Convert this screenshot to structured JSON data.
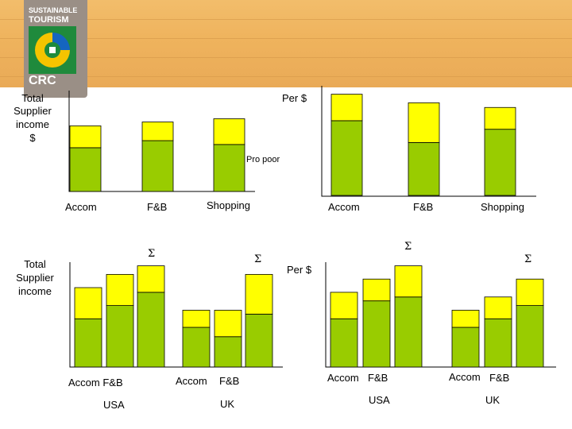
{
  "colors": {
    "base": "#99cc00",
    "top": "#ffff00",
    "banner": "#efb35d",
    "logo_bg": "#9a8f86"
  },
  "logo": {
    "line1": "SUSTAINABLE",
    "line2": "TOURISM",
    "line3": "CRC"
  },
  "annotations": {
    "tl_ylabel_1": "Total",
    "tl_ylabel_2": "Supplier",
    "tl_ylabel_3": "income",
    "tl_ylabel_4": "$",
    "tl_per": "Per $",
    "tl_pro_poor": "Pro poor",
    "bl_ylabel_1": "Total",
    "bl_ylabel_2": "Supplier",
    "bl_ylabel_3": "income",
    "br_per": "Per $",
    "sigma": "Σ",
    "bl_xlab_1": "Accom F&B",
    "bl_xlab_2": "Accom",
    "bl_xlab_3": "F&B",
    "bl_group_1": "USA",
    "bl_group_2": "UK",
    "br_xlab_1": "Accom",
    "br_xlab_2": "F&B",
    "br_xlab_3": "Accom",
    "br_xlab_4": "F&B",
    "br_group_1": "USA",
    "br_group_2": "UK"
  },
  "chart_data": [
    {
      "type": "bar",
      "stacked": true,
      "categories": [
        "Accom",
        "F&B",
        "Shopping"
      ],
      "series": [
        {
          "values": [
            68,
            79,
            73
          ]
        },
        {
          "values": [
            34,
            29,
            40
          ]
        }
      ],
      "ylim": [
        0,
        140
      ]
    },
    {
      "type": "bar",
      "stacked": true,
      "categories": [
        "Accom",
        "F&B",
        "Shopping"
      ],
      "series": [
        {
          "values": [
            96,
            68,
            85
          ]
        },
        {
          "values": [
            34,
            51,
            28
          ]
        }
      ],
      "ylim": [
        0,
        140
      ]
    },
    {
      "type": "bar",
      "stacked": true,
      "groups": [
        "USA",
        "UK"
      ],
      "categories": [
        "Accom",
        "F&B",
        "Σ",
        "Accom",
        "F&B",
        "Σ"
      ],
      "series": [
        {
          "values": [
            62,
            79,
            96,
            51,
            39,
            68
          ]
        },
        {
          "values": [
            40,
            40,
            34,
            22,
            34,
            51
          ]
        }
      ],
      "ylim": [
        0,
        140
      ]
    },
    {
      "type": "bar",
      "stacked": true,
      "groups": [
        "USA",
        "UK"
      ],
      "categories": [
        "Accom",
        "F&B",
        "Σ",
        "Accom",
        "F&B",
        "Σ"
      ],
      "series": [
        {
          "values": [
            62,
            85,
            90,
            51,
            62,
            79
          ]
        },
        {
          "values": [
            34,
            28,
            40,
            22,
            28,
            34
          ]
        }
      ],
      "ylim": [
        0,
        140
      ]
    }
  ]
}
